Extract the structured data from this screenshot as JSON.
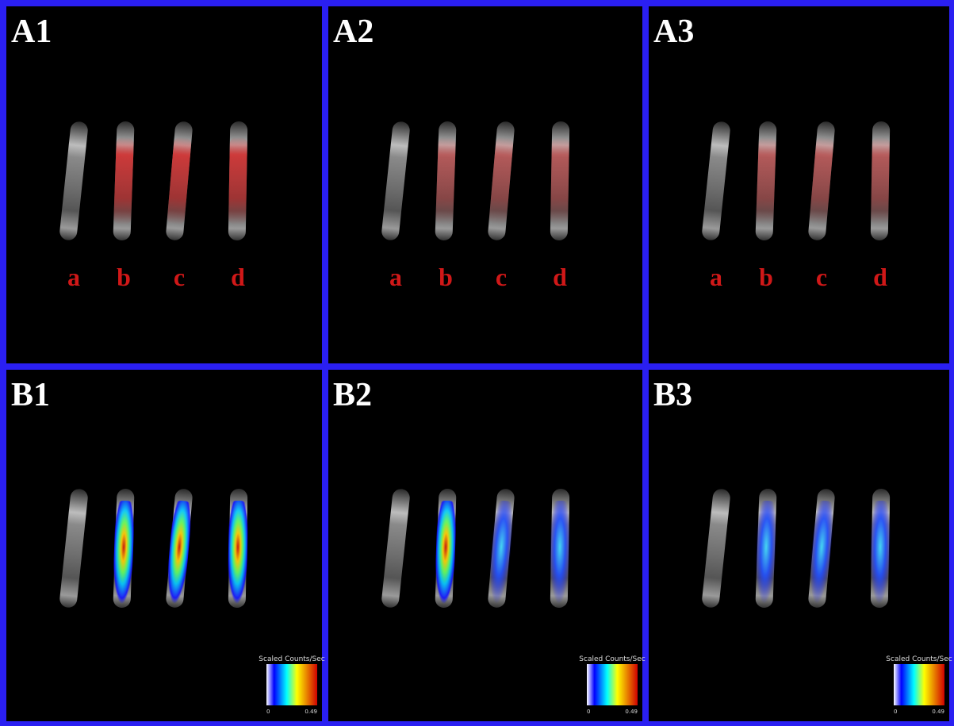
{
  "panels": [
    {
      "label": "A1",
      "worm_labels": [
        "a",
        "b",
        "c",
        "d"
      ]
    },
    {
      "label": "A2",
      "worm_labels": [
        "a",
        "b",
        "c",
        "d"
      ]
    },
    {
      "label": "A3",
      "worm_labels": [
        "a",
        "b",
        "c",
        "d"
      ]
    },
    {
      "label": "B1",
      "colorbar": {
        "title": "Scaled Counts/Sec",
        "min": "0",
        "max": "0.49"
      }
    },
    {
      "label": "B2",
      "colorbar": {
        "title": "Scaled Counts/Sec",
        "min": "0",
        "max": "0.49"
      }
    },
    {
      "label": "B3",
      "colorbar": {
        "title": "Scaled Counts/Sec",
        "min": "0",
        "max": "0.49"
      }
    }
  ]
}
